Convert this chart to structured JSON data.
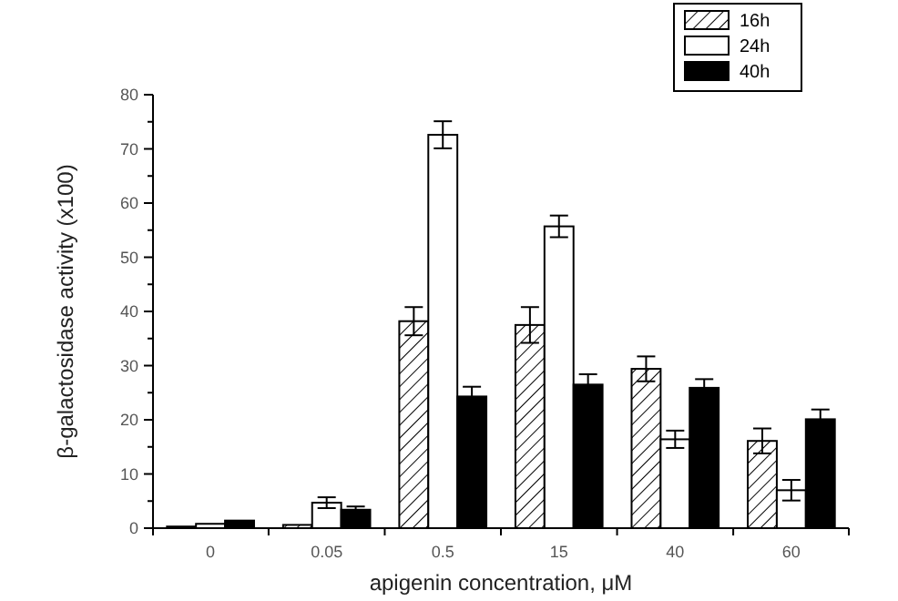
{
  "chart_data": {
    "type": "bar",
    "xlabel": "apigenin concentration, μM",
    "ylabel": "β-galactosidase activity (x100)",
    "categories": [
      "0",
      "0.05",
      "0.5",
      "15",
      "40",
      "60"
    ],
    "ylim": [
      0,
      80
    ],
    "yticks": [
      0,
      10,
      20,
      30,
      40,
      50,
      60,
      70,
      80
    ],
    "legend": "top right",
    "grid": false,
    "series": [
      {
        "name": "16h",
        "color": "#000000",
        "values": [
          0.3,
          0.6,
          38.2,
          37.5,
          29.4,
          16.1
        ],
        "errors": [
          null,
          null,
          2.6,
          3.3,
          2.3,
          2.3
        ]
      },
      {
        "name": "24h",
        "color": "#ffffff",
        "values": [
          0.8,
          4.7,
          72.6,
          55.7,
          16.4,
          7
        ],
        "errors": [
          null,
          1,
          2.5,
          2,
          1.6,
          1.9
        ]
      },
      {
        "name": "40h",
        "color": "#000000",
        "values": [
          1.4,
          3.4,
          24.3,
          26.5,
          25.9,
          20.1
        ],
        "errors": [
          null,
          0.6,
          1.8,
          1.9,
          1.6,
          1.8
        ]
      }
    ]
  }
}
